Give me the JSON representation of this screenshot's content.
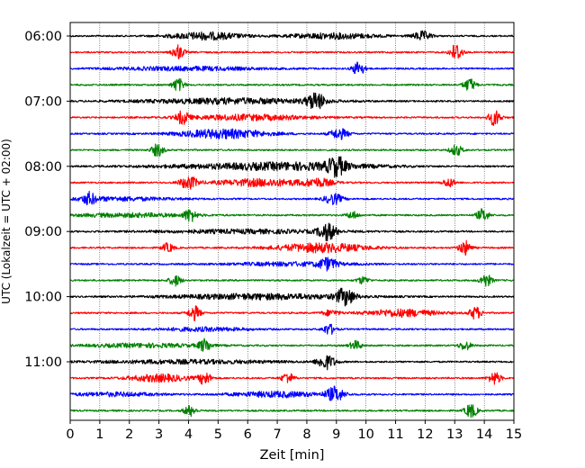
{
  "chart_data": {
    "type": "line",
    "title": "",
    "xlabel": "Zeit  [min]",
    "ylabel": "UTC (Lokalzeit = UTC + 02:00)",
    "xlim": [
      0,
      15
    ],
    "x_ticks": [
      "0",
      "1",
      "2",
      "3",
      "4",
      "5",
      "6",
      "7",
      "8",
      "9",
      "10",
      "11",
      "12",
      "13",
      "14",
      "15"
    ],
    "y_tick_labels": [
      "06:00",
      "07:00",
      "08:00",
      "09:00",
      "10:00",
      "11:00"
    ],
    "grid": "vertical dotted",
    "trace_colors": [
      "#000000",
      "#ff0000",
      "#0000ff",
      "#008000"
    ],
    "rows": [
      {
        "utc": "06:00",
        "events": [
          {
            "t": 4.6,
            "a": 4,
            "w": 1.2
          },
          {
            "t": 8.9,
            "a": 3,
            "w": 1.5
          },
          {
            "t": 11.9,
            "a": 5,
            "w": 0.3
          }
        ]
      },
      {
        "utc": "06:15",
        "events": [
          {
            "t": 3.65,
            "a": 8,
            "w": 0.2
          },
          {
            "t": 13.05,
            "a": 10,
            "w": 0.2
          }
        ]
      },
      {
        "utc": "06:30",
        "events": [
          {
            "t": 9.75,
            "a": 8,
            "w": 0.2
          },
          {
            "t": 4.0,
            "a": 2,
            "w": 2.5
          }
        ]
      },
      {
        "utc": "06:45",
        "events": [
          {
            "t": 3.65,
            "a": 7,
            "w": 0.2
          },
          {
            "t": 13.5,
            "a": 7,
            "w": 0.2
          }
        ]
      },
      {
        "utc": "07:00",
        "events": [
          {
            "t": 8.3,
            "a": 9,
            "w": 0.3
          },
          {
            "t": 5.5,
            "a": 3,
            "w": 3.0
          }
        ]
      },
      {
        "utc": "07:15",
        "events": [
          {
            "t": 3.8,
            "a": 7,
            "w": 0.2
          },
          {
            "t": 14.35,
            "a": 9,
            "w": 0.2
          },
          {
            "t": 6.0,
            "a": 3,
            "w": 2.0
          }
        ]
      },
      {
        "utc": "07:30",
        "events": [
          {
            "t": 5.2,
            "a": 5,
            "w": 1.5
          },
          {
            "t": 9.1,
            "a": 6,
            "w": 0.3
          }
        ]
      },
      {
        "utc": "07:45",
        "events": [
          {
            "t": 2.95,
            "a": 7,
            "w": 0.2
          },
          {
            "t": 13.05,
            "a": 6,
            "w": 0.2
          }
        ]
      },
      {
        "utc": "08:00",
        "events": [
          {
            "t": 9.0,
            "a": 9,
            "w": 0.3
          },
          {
            "t": 8.0,
            "a": 3,
            "w": 2.5
          },
          {
            "t": 5.5,
            "a": 2,
            "w": 3.0
          }
        ]
      },
      {
        "utc": "08:15",
        "events": [
          {
            "t": 4.0,
            "a": 7,
            "w": 0.3
          },
          {
            "t": 6.5,
            "a": 4,
            "w": 1.5
          },
          {
            "t": 8.4,
            "a": 4,
            "w": 0.5
          },
          {
            "t": 12.8,
            "a": 5,
            "w": 0.2
          }
        ]
      },
      {
        "utc": "08:30",
        "events": [
          {
            "t": 0.65,
            "a": 6,
            "w": 0.2
          },
          {
            "t": 8.9,
            "a": 6,
            "w": 0.3
          },
          {
            "t": 1.5,
            "a": 2,
            "w": 2.0
          }
        ]
      },
      {
        "utc": "08:45",
        "events": [
          {
            "t": 4.05,
            "a": 7,
            "w": 0.2
          },
          {
            "t": 9.55,
            "a": 4,
            "w": 0.2
          },
          {
            "t": 13.95,
            "a": 7,
            "w": 0.2
          },
          {
            "t": 2.0,
            "a": 2,
            "w": 2.0
          }
        ]
      },
      {
        "utc": "09:00",
        "events": [
          {
            "t": 8.7,
            "a": 9,
            "w": 0.3
          },
          {
            "t": 6.0,
            "a": 2,
            "w": 3.0
          }
        ]
      },
      {
        "utc": "09:15",
        "events": [
          {
            "t": 3.3,
            "a": 5,
            "w": 0.2
          },
          {
            "t": 8.5,
            "a": 5,
            "w": 1.5
          },
          {
            "t": 13.35,
            "a": 8,
            "w": 0.2
          }
        ]
      },
      {
        "utc": "09:30",
        "events": [
          {
            "t": 8.7,
            "a": 6,
            "w": 0.3
          },
          {
            "t": 7.5,
            "a": 2,
            "w": 2.0
          }
        ]
      },
      {
        "utc": "09:45",
        "events": [
          {
            "t": 3.55,
            "a": 6,
            "w": 0.2
          },
          {
            "t": 9.9,
            "a": 4,
            "w": 0.2
          },
          {
            "t": 14.05,
            "a": 7,
            "w": 0.2
          }
        ]
      },
      {
        "utc": "10:00",
        "events": [
          {
            "t": 9.3,
            "a": 9,
            "w": 0.3
          },
          {
            "t": 6.5,
            "a": 3,
            "w": 3.0
          }
        ]
      },
      {
        "utc": "10:15",
        "events": [
          {
            "t": 4.2,
            "a": 8,
            "w": 0.2
          },
          {
            "t": 11.2,
            "a": 4,
            "w": 1.2
          },
          {
            "t": 13.7,
            "a": 7,
            "w": 0.2
          },
          {
            "t": 8.8,
            "a": 3,
            "w": 0.3
          }
        ]
      },
      {
        "utc": "10:30",
        "events": [
          {
            "t": 8.75,
            "a": 6,
            "w": 0.2
          },
          {
            "t": 4.5,
            "a": 2,
            "w": 1.5
          }
        ]
      },
      {
        "utc": "10:45",
        "events": [
          {
            "t": 4.55,
            "a": 7,
            "w": 0.2
          },
          {
            "t": 9.65,
            "a": 5,
            "w": 0.2
          },
          {
            "t": 13.35,
            "a": 5,
            "w": 0.2
          },
          {
            "t": 2.5,
            "a": 2,
            "w": 2.0
          }
        ]
      },
      {
        "utc": "11:00",
        "events": [
          {
            "t": 8.65,
            "a": 8,
            "w": 0.3
          },
          {
            "t": 4.0,
            "a": 2,
            "w": 3.0
          }
        ]
      },
      {
        "utc": "11:15",
        "events": [
          {
            "t": 3.0,
            "a": 4,
            "w": 1.0
          },
          {
            "t": 4.55,
            "a": 7,
            "w": 0.2
          },
          {
            "t": 7.35,
            "a": 6,
            "w": 0.2
          },
          {
            "t": 14.35,
            "a": 7,
            "w": 0.2
          }
        ]
      },
      {
        "utc": "11:30",
        "events": [
          {
            "t": 8.95,
            "a": 8,
            "w": 0.3
          },
          {
            "t": 7.0,
            "a": 3,
            "w": 1.5
          },
          {
            "t": 1.5,
            "a": 2,
            "w": 1.5
          }
        ]
      },
      {
        "utc": "11:45",
        "events": [
          {
            "t": 4.05,
            "a": 6,
            "w": 0.2
          },
          {
            "t": 13.55,
            "a": 8,
            "w": 0.2
          }
        ]
      }
    ]
  }
}
